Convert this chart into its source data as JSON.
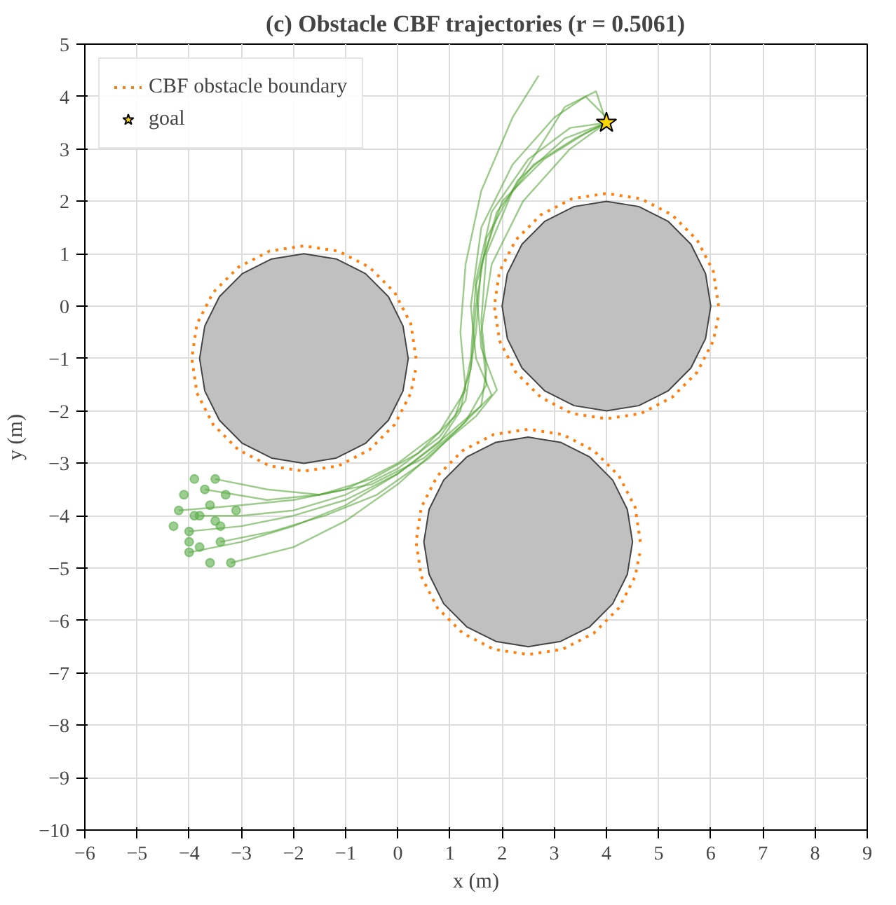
{
  "chart_data": {
    "type": "line",
    "title": "(c) Obstacle CBF trajectories (r = 0.5061)",
    "xlabel": "x (m)",
    "ylabel": "y (m)",
    "xlim": [
      -6,
      9
    ],
    "ylim": [
      -10,
      5
    ],
    "xticks": [
      -6,
      -5,
      -4,
      -3,
      -2,
      -1,
      0,
      1,
      2,
      3,
      4,
      5,
      6,
      7,
      8,
      9
    ],
    "yticks": [
      -10,
      -9,
      -8,
      -7,
      -6,
      -5,
      -4,
      -3,
      -2,
      -1,
      0,
      1,
      2,
      3,
      4,
      5
    ],
    "grid": true,
    "legend": "top left",
    "series": [
      {
        "type": "area",
        "color": "#c0c0c0",
        "x": [
          0.2,
          0.1,
          -0.18,
          -0.62,
          -1.18,
          -1.8,
          -2.42,
          -2.98,
          -3.42,
          -3.7,
          -3.8,
          -3.7,
          -3.42,
          -2.98,
          -2.42,
          -1.8,
          -1.18,
          -0.62,
          -0.18,
          0.1,
          0.2,
          null,
          6,
          5.9,
          5.62,
          5.18,
          4.62,
          4,
          3.38,
          2.82,
          2.38,
          2.1,
          2,
          2.1,
          2.38,
          2.82,
          3.38,
          4,
          4.62,
          5.18,
          5.62,
          5.9,
          6,
          null,
          4.5,
          4.4,
          4.12,
          3.68,
          3.12,
          2.5,
          1.88,
          1.32,
          0.88,
          0.6,
          0.5,
          0.6,
          0.88,
          1.32,
          1.88,
          2.5,
          3.12,
          3.68,
          4.12,
          4.4,
          4.5
        ],
        "values": [
          -1,
          -0.38,
          0.18,
          0.62,
          0.9,
          1,
          0.9,
          0.62,
          0.18,
          -0.38,
          -1,
          -1.62,
          -2.18,
          -2.62,
          -2.9,
          -3,
          -2.9,
          -2.62,
          -2.18,
          -1.62,
          -1,
          null,
          0,
          0.62,
          1.18,
          1.62,
          1.9,
          2,
          1.9,
          1.62,
          1.18,
          0.62,
          0,
          -0.62,
          -1.18,
          -1.62,
          -1.9,
          -2,
          -1.9,
          -1.62,
          -1.18,
          -0.62,
          0,
          null,
          -4.5,
          -3.88,
          -3.32,
          -2.88,
          -2.6,
          -2.5,
          -2.6,
          -2.88,
          -3.32,
          -3.88,
          -4.5,
          -5.12,
          -5.68,
          -6.12,
          -6.4,
          -6.5,
          -6.4,
          -6.12,
          -5.68,
          -5.12,
          -4.5
        ]
      },
      {
        "type": "line",
        "name": "CBF obstacle boundary",
        "color": "#ff7f0e",
        "line_style": "dotted",
        "x": [
          0.35,
          0.25,
          -0.06,
          -0.54,
          -1.14,
          -1.8,
          -2.46,
          -3.06,
          -3.54,
          -3.85,
          -3.95,
          -3.85,
          -3.54,
          -3.06,
          -2.46,
          -1.8,
          -1.14,
          -0.54,
          -0.06,
          0.25,
          0.34
        ],
        "values": [
          -1,
          -0.34,
          0.26,
          0.74,
          1.05,
          1.15,
          1.05,
          0.74,
          0.26,
          -0.34,
          -1,
          -1.66,
          -2.26,
          -2.74,
          -3.05,
          -3.15,
          -3.05,
          -2.74,
          -2.26,
          -1.66,
          -1.22
        ]
      },
      {
        "type": "line",
        "color": "#ff7f0e",
        "line_style": "dotted",
        "x": [
          6.15,
          6.05,
          5.74,
          5.26,
          4.66,
          4,
          3.34,
          2.74,
          2.26,
          1.95,
          1.85,
          1.95,
          2.26,
          2.74,
          3.34,
          4,
          4.66,
          5.26,
          5.74,
          6.05,
          6.14
        ],
        "values": [
          0,
          0.66,
          1.26,
          1.74,
          2.05,
          2.15,
          2.05,
          1.74,
          1.26,
          0.66,
          0,
          -0.66,
          -1.26,
          -1.74,
          -2.05,
          -2.15,
          -2.05,
          -1.74,
          -1.26,
          -0.66,
          -0.22
        ]
      },
      {
        "type": "line",
        "color": "#ff7f0e",
        "line_style": "dotted",
        "x": [
          4.65,
          4.55,
          4.24,
          3.76,
          3.16,
          2.5,
          1.84,
          1.24,
          0.76,
          0.45,
          0.35,
          0.45,
          0.76,
          1.24,
          1.84,
          2.5,
          3.16,
          3.76,
          4.24,
          4.55,
          4.64
        ],
        "values": [
          -4.5,
          -3.84,
          -3.24,
          -2.76,
          -2.45,
          -2.35,
          -2.45,
          -2.76,
          -3.24,
          -3.84,
          -4.5,
          -5.16,
          -5.76,
          -6.24,
          -6.55,
          -6.65,
          -6.55,
          -6.24,
          -5.76,
          -5.16,
          -4.72
        ]
      },
      {
        "type": "line",
        "color": "#4ca02c",
        "x": [
          -3.8,
          -3,
          -2,
          -1,
          0,
          0.8,
          1.3,
          1.5,
          1.6,
          2,
          2.8,
          3.6,
          4
        ],
        "values": [
          -4,
          -4,
          -3.9,
          -3.6,
          -3.1,
          -2.5,
          -1.8,
          -0.5,
          0.8,
          2,
          2.8,
          3.3,
          3.5
        ]
      },
      {
        "color": "#4ca02c",
        "x": [
          -4,
          -3,
          -2,
          -1,
          0,
          0.8,
          1.2,
          1.4,
          1.5,
          1.8,
          2.5,
          3.3,
          4
        ],
        "values": [
          -4.7,
          -4.5,
          -4.2,
          -3.8,
          -3.2,
          -2.6,
          -2,
          -1,
          0.5,
          1.8,
          2.8,
          3.4,
          3.5
        ]
      },
      {
        "color": "#4ca02c",
        "x": [
          -3.5,
          -2.5,
          -1.5,
          -0.5,
          0.5,
          1.2,
          1.8,
          1.5,
          1.4,
          1.6,
          2.2,
          3,
          3.6,
          4
        ],
        "values": [
          -3.3,
          -3.5,
          -3.6,
          -3.4,
          -2.9,
          -2.3,
          -1.7,
          -1,
          0,
          1.5,
          2.7,
          3.6,
          4,
          3.6
        ]
      },
      {
        "color": "#4ca02c",
        "x": [
          -4.2,
          -3,
          -2,
          -1,
          0,
          0.8,
          1.3,
          1.2,
          1.3,
          1.6,
          2.2,
          2.7
        ],
        "values": [
          -3.9,
          -3.8,
          -3.7,
          -3.5,
          -3,
          -2.4,
          -1.6,
          -0.5,
          0.8,
          2.2,
          3.6,
          4.4
        ]
      },
      {
        "color": "#4ca02c",
        "x": [
          -3.2,
          -2,
          -1,
          0,
          0.9,
          1.5,
          1.9,
          1.6,
          1.5,
          1.9,
          2.6,
          3.4,
          4
        ],
        "values": [
          -4.9,
          -4.6,
          -4.1,
          -3.4,
          -2.6,
          -2.1,
          -1.6,
          -0.8,
          0.4,
          1.8,
          2.7,
          3.2,
          3.5
        ]
      },
      {
        "color": "#4ca02c",
        "x": [
          -3.7,
          -2.5,
          -1.5,
          -0.5,
          0.4,
          1.1,
          1.4,
          1.5,
          1.7,
          2.3,
          3.2,
          4
        ],
        "values": [
          -3.5,
          -3.7,
          -3.6,
          -3.3,
          -2.8,
          -2.1,
          -1.2,
          0,
          1.3,
          2.4,
          3.2,
          3.5
        ]
      },
      {
        "color": "#4ca02c",
        "x": [
          -4,
          -3,
          -2,
          -1,
          0,
          0.9,
          1.6,
          1.7,
          1.6,
          1.7,
          2.2,
          3.2,
          3.8,
          4
        ],
        "values": [
          -4.3,
          -4.2,
          -4,
          -3.7,
          -3.2,
          -2.5,
          -1.9,
          -1.2,
          -0.3,
          1,
          2.2,
          3.8,
          4.1,
          3.5
        ]
      },
      {
        "color": "#4ca02c",
        "x": [
          -3.4,
          -2.4,
          -1.4,
          -0.4,
          0.6,
          1.3,
          1.7,
          1.6,
          1.8,
          2.4,
          3.3,
          4
        ],
        "values": [
          -4.5,
          -4.3,
          -4,
          -3.6,
          -2.9,
          -2.2,
          -1.5,
          -0.5,
          0.8,
          2,
          3,
          3.5
        ]
      },
      {
        "type": "scatter",
        "color": "#5aae4a",
        "marker": "circle",
        "x": [
          -3.8,
          -4,
          -3.5,
          -4.2,
          -3.2,
          -3.7,
          -4,
          -3.4,
          -3.9,
          -3.6,
          -4.3,
          -3.3,
          -3.8,
          -4.1,
          -3.5,
          -3.1,
          -3.9,
          -3.6,
          -4,
          -3.4
        ],
        "values": [
          -4,
          -4.7,
          -3.3,
          -3.9,
          -4.9,
          -3.5,
          -4.3,
          -4.5,
          -3.3,
          -4.9,
          -4.2,
          -3.6,
          -4.6,
          -3.6,
          -4.1,
          -3.9,
          -4,
          -3.8,
          -4.5,
          -4.2
        ]
      },
      {
        "type": "scatter",
        "name": "goal",
        "color": "#ffd700",
        "marker": "star",
        "x": [
          4
        ],
        "values": [
          3.5
        ]
      }
    ]
  }
}
